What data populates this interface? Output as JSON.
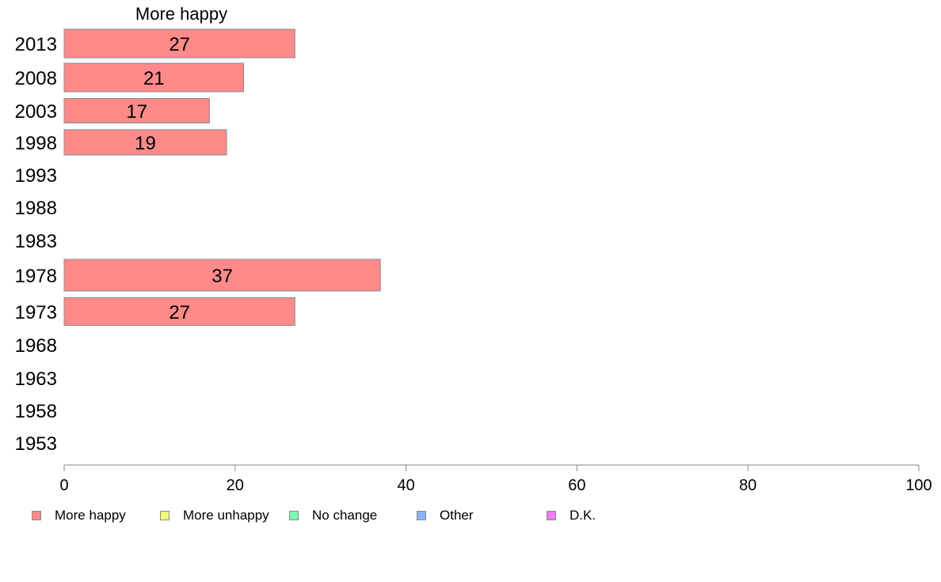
{
  "chart_data": {
    "type": "bar",
    "orientation": "horizontal",
    "title": "",
    "panel_title": "More happy",
    "categories": [
      "2013",
      "2008",
      "2003",
      "1998",
      "1993",
      "1988",
      "1983",
      "1978",
      "1973",
      "1968",
      "1963",
      "1958",
      "1953"
    ],
    "series": [
      {
        "name": "More happy",
        "color": "#ff8a8a",
        "values": [
          27,
          21,
          17,
          19,
          null,
          null,
          null,
          37,
          27,
          null,
          null,
          null,
          null
        ]
      }
    ],
    "data_labels": [
      "27",
      "21",
      "17",
      "19",
      "",
      "",
      "",
      "37",
      "27",
      "",
      "",
      "",
      ""
    ],
    "xlim": [
      0,
      100
    ],
    "xticks": [
      0,
      20,
      40,
      60,
      80,
      100
    ],
    "xlabel": "",
    "ylabel": "",
    "grid": false,
    "legend_position": "bottom",
    "legend": [
      {
        "name": "More happy",
        "color": "#ff8a8a"
      },
      {
        "name": "More unhappy",
        "color": "#eeff7a"
      },
      {
        "name": "No change",
        "color": "#7affb0"
      },
      {
        "name": "Other",
        "color": "#88b4ff"
      },
      {
        "name": "D.K.",
        "color": "#f07af5"
      }
    ]
  }
}
